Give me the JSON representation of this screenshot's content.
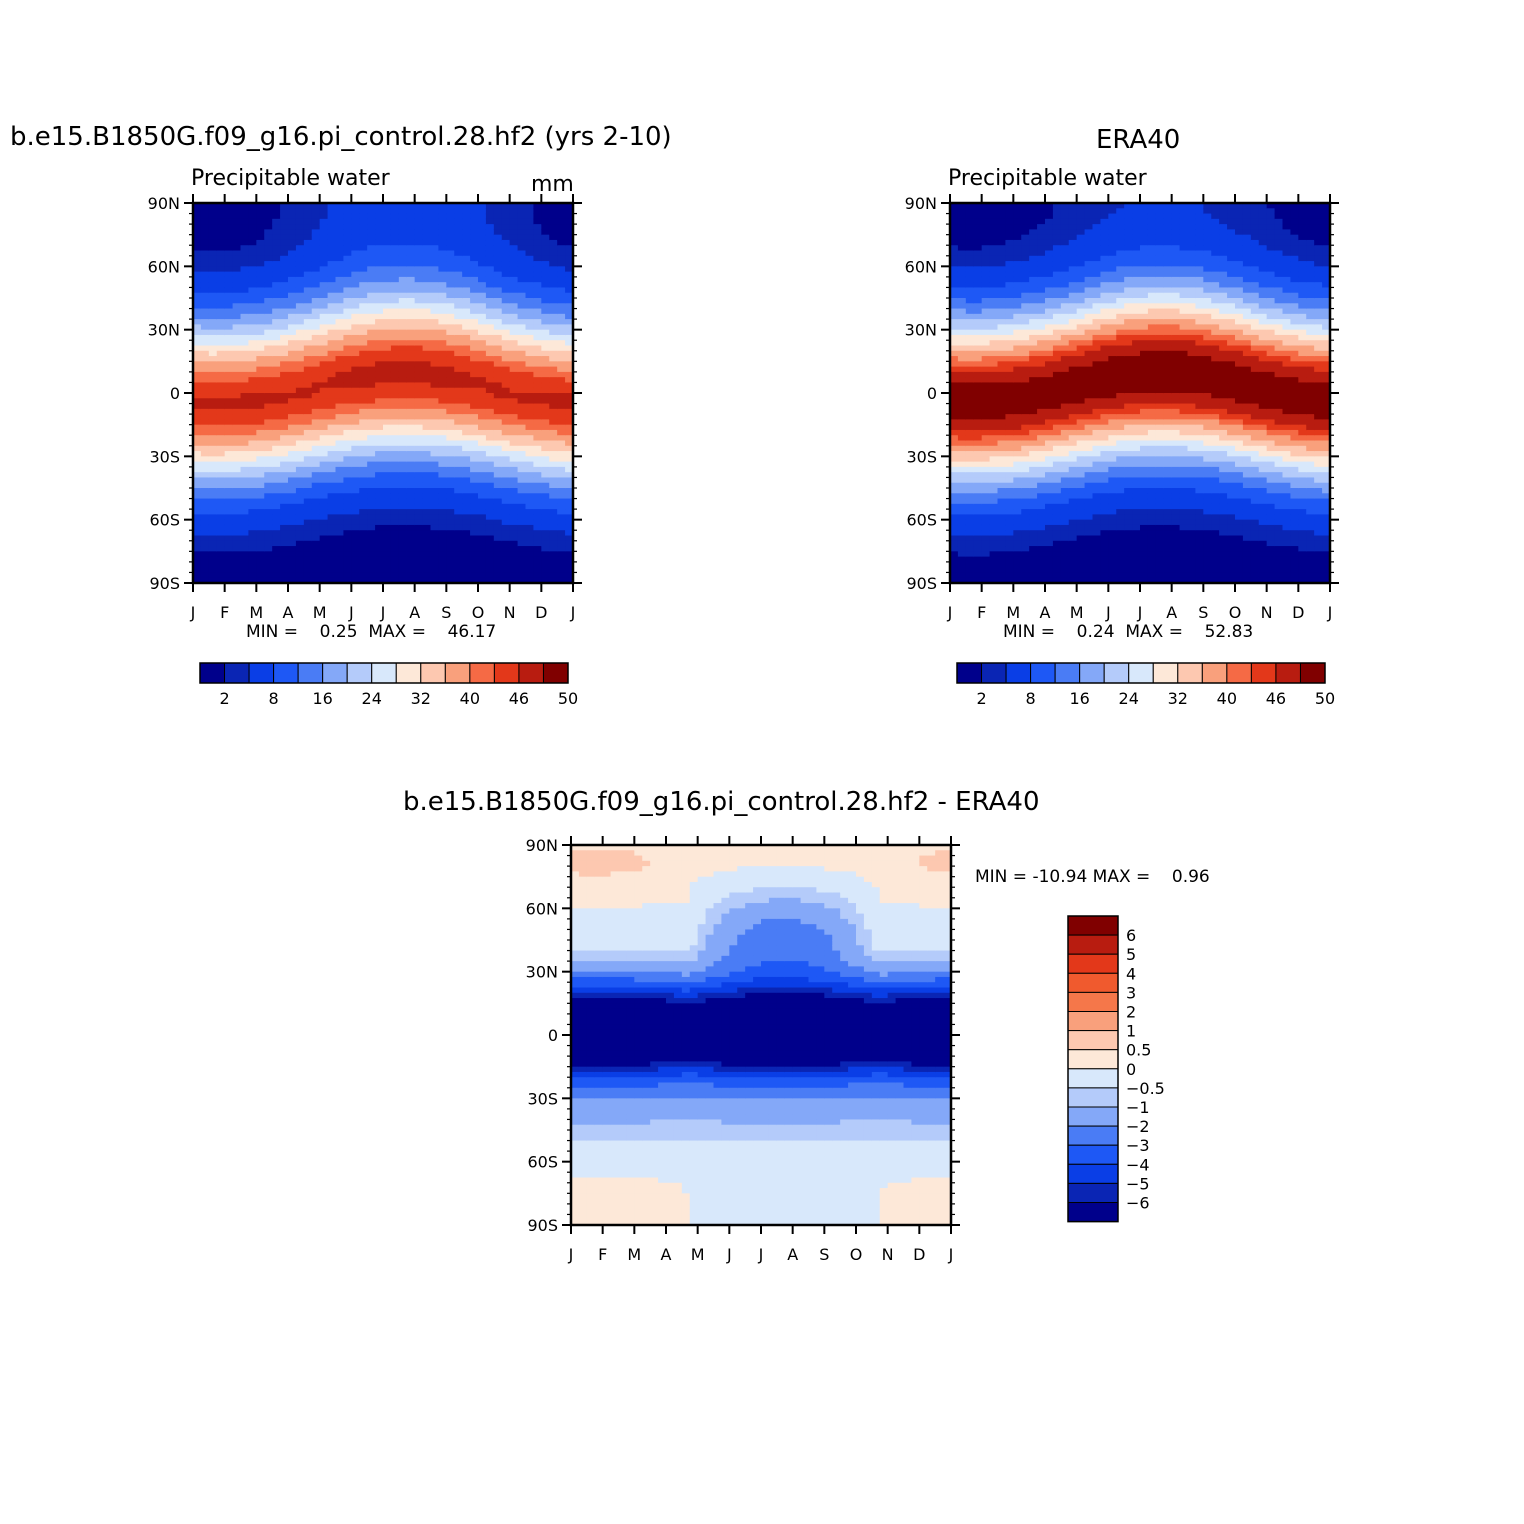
{
  "colors": {
    "seq14": [
      "#00008b",
      "#0a25b4",
      "#0a3ee6",
      "#1e58f5",
      "#4a7cf5",
      "#84a8f8",
      "#b4cbfa",
      "#d8e8fb",
      "#fde8d8",
      "#fdc8b0",
      "#f9a07c",
      "#f56a45",
      "#e3381a",
      "#b81c10",
      "#800000"
    ],
    "diff16": [
      "#00008b",
      "#0a25b4",
      "#0a3ee6",
      "#1e58f5",
      "#4a7cf5",
      "#84a8f8",
      "#b4cbfa",
      "#d8e8fb",
      "#fde8d8",
      "#fdc8b0",
      "#f9a07c",
      "#f5774a",
      "#f05a2e",
      "#e3381a",
      "#b81c10",
      "#800000"
    ]
  },
  "chart_data": [
    {
      "type": "heatmap",
      "name": "model",
      "title": "b.e15.B1850G.f09_g16.pi_control.28.hf2 (yrs 2-10)",
      "subtitle": "Precipitable water",
      "units": "mm",
      "stats": {
        "min_label": "MIN =",
        "min": "0.25",
        "max_label": "MAX =",
        "max": "46.17"
      },
      "x_ticks": [
        "J",
        "F",
        "M",
        "A",
        "M",
        "J",
        "J",
        "A",
        "S",
        "O",
        "N",
        "D",
        "J"
      ],
      "y_ticks": [
        "90N",
        "60N",
        "30N",
        "0",
        "30S",
        "60S",
        "90S"
      ],
      "y_range": [
        -90,
        90
      ],
      "field": {
        "eq_peak": 46,
        "itcz_lat_jan": -5,
        "itcz_lat_jul": 8,
        "nh_pole": 3,
        "sh_pole": 0.3
      },
      "levels_labels": [
        "2",
        "8",
        "16",
        "24",
        "32",
        "40",
        "46",
        "50"
      ],
      "levels": [
        0,
        2,
        4,
        8,
        12,
        16,
        20,
        24,
        28,
        32,
        36,
        40,
        43,
        46,
        50,
        100
      ]
    },
    {
      "type": "heatmap",
      "name": "era40",
      "title": "ERA40",
      "subtitle": "Precipitable water",
      "units": "",
      "stats": {
        "min_label": "MIN =",
        "min": "0.24",
        "max_label": "MAX =",
        "max": "52.83"
      },
      "x_ticks": [
        "J",
        "F",
        "M",
        "A",
        "M",
        "J",
        "J",
        "A",
        "S",
        "O",
        "N",
        "D",
        "J"
      ],
      "y_ticks": [
        "90N",
        "60N",
        "30N",
        "0",
        "30S",
        "60S",
        "90S"
      ],
      "y_range": [
        -90,
        90
      ],
      "field": {
        "eq_peak": 52,
        "itcz_lat_jan": -4,
        "itcz_lat_jul": 9,
        "nh_pole": 2,
        "sh_pole": 0.3
      },
      "levels_labels": [
        "2",
        "8",
        "16",
        "24",
        "32",
        "40",
        "46",
        "50"
      ],
      "levels": [
        0,
        2,
        4,
        8,
        12,
        16,
        20,
        24,
        28,
        32,
        36,
        40,
        43,
        46,
        50,
        100
      ]
    },
    {
      "type": "heatmap",
      "name": "difference",
      "title": "b.e15.B1850G.f09_g16.pi_control.28.hf2 - ERA40",
      "stats": {
        "min_label": "MIN =",
        "min": "-10.94",
        "max_label": "MAX =",
        "max": "0.96"
      },
      "x_ticks": [
        "J",
        "F",
        "M",
        "A",
        "M",
        "J",
        "J",
        "A",
        "S",
        "O",
        "N",
        "D",
        "J"
      ],
      "y_ticks": [
        "90N",
        "60N",
        "30N",
        "0",
        "30S",
        "60S",
        "90S"
      ],
      "y_range": [
        -90,
        90
      ],
      "levels_labels": [
        "6",
        "5",
        "4",
        "3",
        "2",
        "1",
        "0.5",
        "0",
        "-0.5",
        "-1",
        "-2",
        "-3",
        "-4",
        "-5",
        "-6"
      ],
      "levels": [
        -100,
        -6,
        -5,
        -4,
        -3,
        -2,
        -1,
        -0.5,
        0,
        0.5,
        1,
        2,
        3,
        4,
        5,
        6,
        100
      ]
    }
  ]
}
